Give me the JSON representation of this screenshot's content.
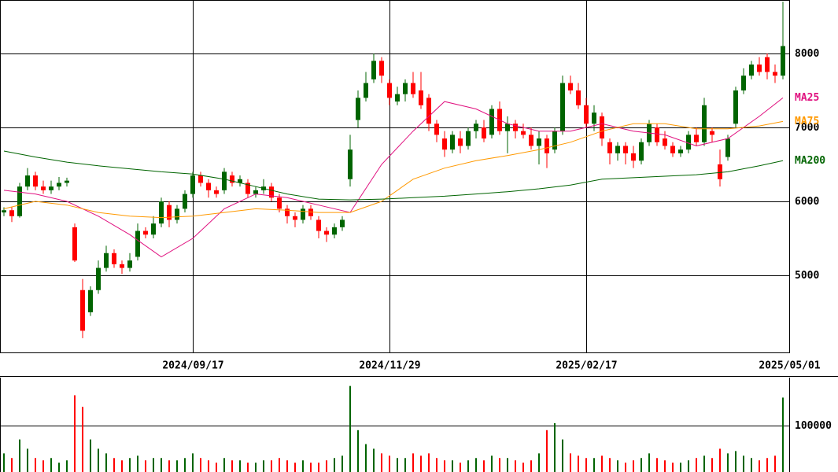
{
  "chart_data": {
    "type": "candlestick",
    "xlim": [
      -0.5,
      99.8
    ],
    "xticks": [
      {
        "value": 24,
        "label": "2024/09/17"
      },
      {
        "value": 49,
        "label": "2024/11/29"
      },
      {
        "value": 74,
        "label": "2025/02/17"
      },
      {
        "value": 99.8,
        "label": "2025/05/01"
      }
    ],
    "ylim": [
      3957,
      8723
    ],
    "yticks": [
      5000,
      6000,
      7000,
      8000
    ],
    "up_color": "#006400",
    "down_color": "#ff0000",
    "open": [
      5850,
      5880,
      5800,
      6200,
      6350,
      6200,
      6150,
      6200,
      6250,
      5650,
      4800,
      4500,
      4800,
      5100,
      5300,
      5150,
      5100,
      5250,
      5600,
      5550,
      5700,
      5950,
      5750,
      5900,
      6100,
      6350,
      6250,
      6150,
      6150,
      6350,
      6250,
      6250,
      6100,
      6150,
      6200,
      6050,
      5900,
      5800,
      5750,
      5900,
      5750,
      5600,
      5550,
      5650,
      6300,
      7100,
      7400,
      7650,
      7900,
      7600,
      7350,
      7450,
      7600,
      7500,
      7400,
      7050,
      6850,
      6700,
      6850,
      6750,
      6950,
      7000,
      6900,
      7250,
      6950,
      7050,
      6950,
      6900,
      6750,
      6850,
      6700,
      6950,
      7600,
      7500,
      7300,
      7050,
      7150,
      6800,
      6650,
      6750,
      6650,
      6550,
      6800,
      7000,
      6850,
      6750,
      6650,
      6700,
      6900,
      6800,
      6950,
      6500,
      6600,
      7050,
      7500,
      7700,
      7850,
      7950,
      7750,
      7700
    ],
    "high": [
      5920,
      5920,
      6250,
      6450,
      6400,
      6280,
      6280,
      6330,
      6320,
      5700,
      4950,
      4850,
      5200,
      5400,
      5350,
      5200,
      5300,
      5700,
      5650,
      5800,
      6050,
      6000,
      5950,
      6150,
      6400,
      6400,
      6300,
      6200,
      6450,
      6400,
      6350,
      6300,
      6200,
      6300,
      6250,
      6100,
      5950,
      5850,
      5950,
      5950,
      5800,
      5650,
      5700,
      5800,
      6900,
      7500,
      7750,
      8000,
      7950,
      7650,
      7550,
      7650,
      7750,
      7750,
      7450,
      7100,
      6950,
      6950,
      6950,
      7000,
      7100,
      7100,
      7300,
      7350,
      7150,
      7100,
      7050,
      7000,
      6950,
      6900,
      7000,
      7700,
      7700,
      7600,
      7400,
      7300,
      7200,
      6850,
      6800,
      6800,
      6750,
      6850,
      7100,
      7050,
      6950,
      6800,
      6750,
      6950,
      7000,
      7400,
      7000,
      6700,
      6900,
      7550,
      7800,
      7900,
      7950,
      8000,
      7850,
      8700
    ],
    "low": [
      5800,
      5720,
      5780,
      6150,
      6150,
      6100,
      6100,
      6150,
      6200,
      5180,
      4150,
      4450,
      4750,
      5050,
      5100,
      5020,
      5050,
      5200,
      5500,
      5500,
      5650,
      5650,
      5700,
      5850,
      6050,
      6200,
      6050,
      6050,
      6100,
      6200,
      6200,
      6050,
      6050,
      6100,
      6000,
      5850,
      5700,
      5650,
      5700,
      5750,
      5500,
      5450,
      5500,
      5600,
      6200,
      7000,
      7350,
      7600,
      7600,
      7300,
      7300,
      7350,
      7400,
      7250,
      6950,
      6800,
      6600,
      6650,
      6650,
      6700,
      6850,
      6800,
      6850,
      6900,
      6650,
      6850,
      6850,
      6700,
      6500,
      6450,
      6650,
      6900,
      7450,
      7250,
      7000,
      6950,
      6750,
      6500,
      6550,
      6500,
      6450,
      6500,
      6750,
      6750,
      6700,
      6600,
      6600,
      6650,
      6750,
      6750,
      6800,
      6200,
      6550,
      7000,
      7450,
      7650,
      7700,
      7650,
      7600,
      7650
    ],
    "close": [
      5880,
      5800,
      6200,
      6350,
      6200,
      6150,
      6200,
      6250,
      6280,
      5200,
      4250,
      4800,
      5100,
      5300,
      5150,
      5100,
      5200,
      5600,
      5550,
      5700,
      6000,
      5750,
      5900,
      6100,
      6350,
      6250,
      6150,
      6100,
      6400,
      6250,
      6300,
      6100,
      6150,
      6200,
      6050,
      5900,
      5800,
      5750,
      5900,
      5800,
      5600,
      5550,
      5650,
      5750,
      6700,
      7400,
      7600,
      7900,
      7700,
      7400,
      7450,
      7600,
      7450,
      7300,
      7050,
      6900,
      6700,
      6900,
      6750,
      6950,
      7050,
      6850,
      7250,
      6950,
      7050,
      6950,
      6900,
      6750,
      6850,
      6650,
      6950,
      7600,
      7500,
      7300,
      7050,
      7200,
      6850,
      6650,
      6750,
      6650,
      6550,
      6800,
      7050,
      6800,
      6750,
      6650,
      6700,
      6900,
      6800,
      7300,
      6900,
      6300,
      6850,
      7500,
      7700,
      7850,
      7750,
      7750,
      7700,
      8100
    ],
    "ma": [
      {
        "name": "MA25",
        "color": "#e0107f",
        "x": [
          0,
          4,
          8,
          12,
          16,
          20,
          24,
          28,
          32,
          36,
          40,
          44,
          48,
          52,
          56,
          60,
          64,
          68,
          72,
          76,
          80,
          84,
          88,
          92,
          96,
          99
        ],
        "values": [
          6150,
          6100,
          6000,
          5800,
          5550,
          5250,
          5500,
          5900,
          6100,
          6050,
          5950,
          5850,
          6500,
          6950,
          7350,
          7250,
          7050,
          6950,
          6950,
          7050,
          6950,
          6900,
          6750,
          6850,
          7150,
          7400
        ]
      },
      {
        "name": "MA75",
        "color": "#ff9900",
        "x": [
          0,
          4,
          8,
          12,
          16,
          20,
          24,
          28,
          32,
          36,
          40,
          44,
          48,
          52,
          56,
          60,
          64,
          68,
          72,
          76,
          80,
          84,
          88,
          92,
          96,
          99
        ],
        "values": [
          5900,
          6000,
          5950,
          5850,
          5800,
          5780,
          5800,
          5850,
          5900,
          5880,
          5850,
          5850,
          6000,
          6300,
          6450,
          6550,
          6620,
          6700,
          6800,
          6950,
          7050,
          7050,
          6980,
          6980,
          7020,
          7080
        ]
      },
      {
        "name": "MA200",
        "color": "#006400",
        "x": [
          0,
          4,
          8,
          12,
          16,
          20,
          24,
          28,
          32,
          36,
          40,
          44,
          48,
          52,
          56,
          60,
          64,
          68,
          72,
          76,
          80,
          84,
          88,
          92,
          96,
          99
        ],
        "values": [
          6680,
          6600,
          6530,
          6480,
          6440,
          6400,
          6370,
          6300,
          6200,
          6100,
          6030,
          6020,
          6030,
          6050,
          6070,
          6100,
          6130,
          6170,
          6220,
          6300,
          6320,
          6340,
          6360,
          6400,
          6480,
          6550
        ]
      }
    ],
    "volume": {
      "ylim": [
        0,
        203000
      ],
      "yticks": [
        100000
      ],
      "values": [
        40000,
        30000,
        70000,
        50000,
        30000,
        25000,
        30000,
        20000,
        25000,
        165000,
        140000,
        70000,
        50000,
        40000,
        30000,
        25000,
        30000,
        35000,
        25000,
        30000,
        30000,
        25000,
        25000,
        30000,
        40000,
        30000,
        25000,
        20000,
        30000,
        25000,
        25000,
        20000,
        20000,
        25000,
        25000,
        30000,
        25000,
        20000,
        25000,
        20000,
        20000,
        25000,
        30000,
        35000,
        185000,
        90000,
        60000,
        50000,
        40000,
        35000,
        30000,
        30000,
        40000,
        35000,
        40000,
        30000,
        25000,
        25000,
        20000,
        25000,
        30000,
        25000,
        35000,
        30000,
        30000,
        25000,
        20000,
        25000,
        40000,
        90000,
        105000,
        70000,
        40000,
        35000,
        30000,
        30000,
        35000,
        30000,
        25000,
        20000,
        25000,
        30000,
        40000,
        30000,
        25000,
        20000,
        20000,
        25000,
        30000,
        35000,
        30000,
        50000,
        40000,
        45000,
        35000,
        30000,
        25000,
        30000,
        35000,
        160000
      ]
    }
  }
}
